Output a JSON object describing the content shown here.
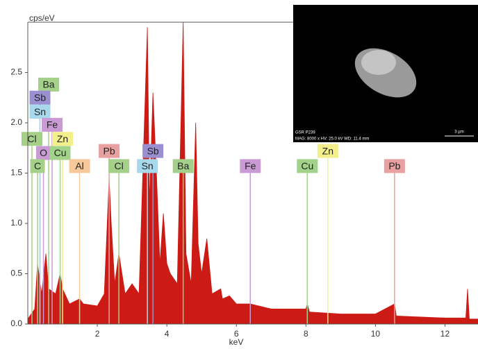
{
  "chart_data": {
    "type": "area",
    "color": "#cc1a14",
    "y_label": "cps/eV",
    "x_label": "keV",
    "xlim": [
      0,
      12.95
    ],
    "ylim": [
      0,
      3.0
    ],
    "xticks": [
      2,
      4,
      6,
      8,
      10,
      12
    ],
    "yticks": [
      {
        "value": 0,
        "label": "0.0"
      },
      0.5,
      {
        "value": 1,
        "label": "1.0"
      },
      1.5,
      {
        "value": 2,
        "label": "2.0"
      },
      2.5
    ],
    "x": [
      0,
      0.1,
      0.2,
      0.28,
      0.4,
      0.52,
      0.6,
      0.8,
      0.93,
      1.0,
      1.2,
      1.49,
      1.6,
      2.0,
      2.2,
      2.34,
      2.4,
      2.5,
      2.62,
      2.8,
      3.0,
      3.2,
      3.44,
      3.5,
      3.6,
      3.7,
      3.8,
      3.9,
      4.0,
      4.1,
      4.2,
      4.3,
      4.47,
      4.55,
      4.7,
      4.83,
      4.9,
      5.0,
      5.15,
      5.3,
      5.55,
      5.6,
      5.8,
      6.0,
      6.4,
      7,
      8,
      8.04,
      8.1,
      9,
      10,
      10.55,
      10.6,
      12,
      12.6,
      12.65,
      12.7,
      12.95
    ],
    "values": [
      0.05,
      0.1,
      0.15,
      0.6,
      0.3,
      0.7,
      0.35,
      0.3,
      0.5,
      0.35,
      0.2,
      0.25,
      0.2,
      0.18,
      0.3,
      1.45,
      1.0,
      0.4,
      0.7,
      0.3,
      0.4,
      0.3,
      2.95,
      1.2,
      2.3,
      1.5,
      0.6,
      1.1,
      0.6,
      0.5,
      0.45,
      0.4,
      3.0,
      0.7,
      0.4,
      2.0,
      0.8,
      0.5,
      0.85,
      0.3,
      0.35,
      0.25,
      0.28,
      0.2,
      0.2,
      0.15,
      0.15,
      0.2,
      0.12,
      0.1,
      0.1,
      0.2,
      0.08,
      0.06,
      0.06,
      0.35,
      0.05,
      0.05
    ],
    "markers": [
      {
        "label": "Ba",
        "x": 0.6,
        "y": 2.38,
        "color": "#a5d08a"
      },
      {
        "label": "Sb",
        "x": 0.35,
        "y": 2.25,
        "color": "#9a8fd0"
      },
      {
        "label": "Sn",
        "x": 0.35,
        "y": 2.11,
        "color": "#a8d8ec"
      },
      {
        "label": "Fe",
        "x": 0.7,
        "y": 1.98,
        "color": "#c99ad3"
      },
      {
        "label": "Cl",
        "x": 0.12,
        "y": 1.84,
        "color": "#a5d08a"
      },
      {
        "label": "Zn",
        "x": 1.0,
        "y": 1.84,
        "color": "#f3ef8a"
      },
      {
        "label": "O",
        "x": 0.45,
        "y": 1.7,
        "color": "#c99ad3"
      },
      {
        "label": "Cu",
        "x": 0.93,
        "y": 1.7,
        "color": "#a3d28a"
      },
      {
        "label": "C",
        "x": 0.28,
        "y": 1.57,
        "color": "#a5d08a"
      },
      {
        "label": "Al",
        "x": 1.49,
        "y": 1.57,
        "color": "#f6c89a"
      },
      {
        "label": "Pb",
        "x": 2.34,
        "y": 1.72,
        "color": "#e8a0a0"
      },
      {
        "label": "Cl",
        "x": 2.62,
        "y": 1.57,
        "color": "#a5d08a"
      },
      {
        "label": "Sb",
        "x": 3.6,
        "y": 1.72,
        "color": "#9a8fd0"
      },
      {
        "label": "Sn",
        "x": 3.44,
        "y": 1.57,
        "color": "#a8d8ec"
      },
      {
        "label": "Ba",
        "x": 4.47,
        "y": 1.57,
        "color": "#a5d08a"
      },
      {
        "label": "Fe",
        "x": 6.4,
        "y": 1.57,
        "color": "#c99ad3"
      },
      {
        "label": "Cu",
        "x": 8.04,
        "y": 1.57,
        "color": "#a3d28a"
      },
      {
        "label": "Zn",
        "x": 8.63,
        "y": 1.72,
        "color": "#f3ef8a"
      },
      {
        "label": "Pb",
        "x": 10.55,
        "y": 1.57,
        "color": "#e8a0a0"
      }
    ]
  },
  "inset": {
    "sample": "GSR P239",
    "info": "MAG: 8000 x  HV: 25.0 kV  WD: 11.4 mm",
    "scale": "3 µm"
  }
}
